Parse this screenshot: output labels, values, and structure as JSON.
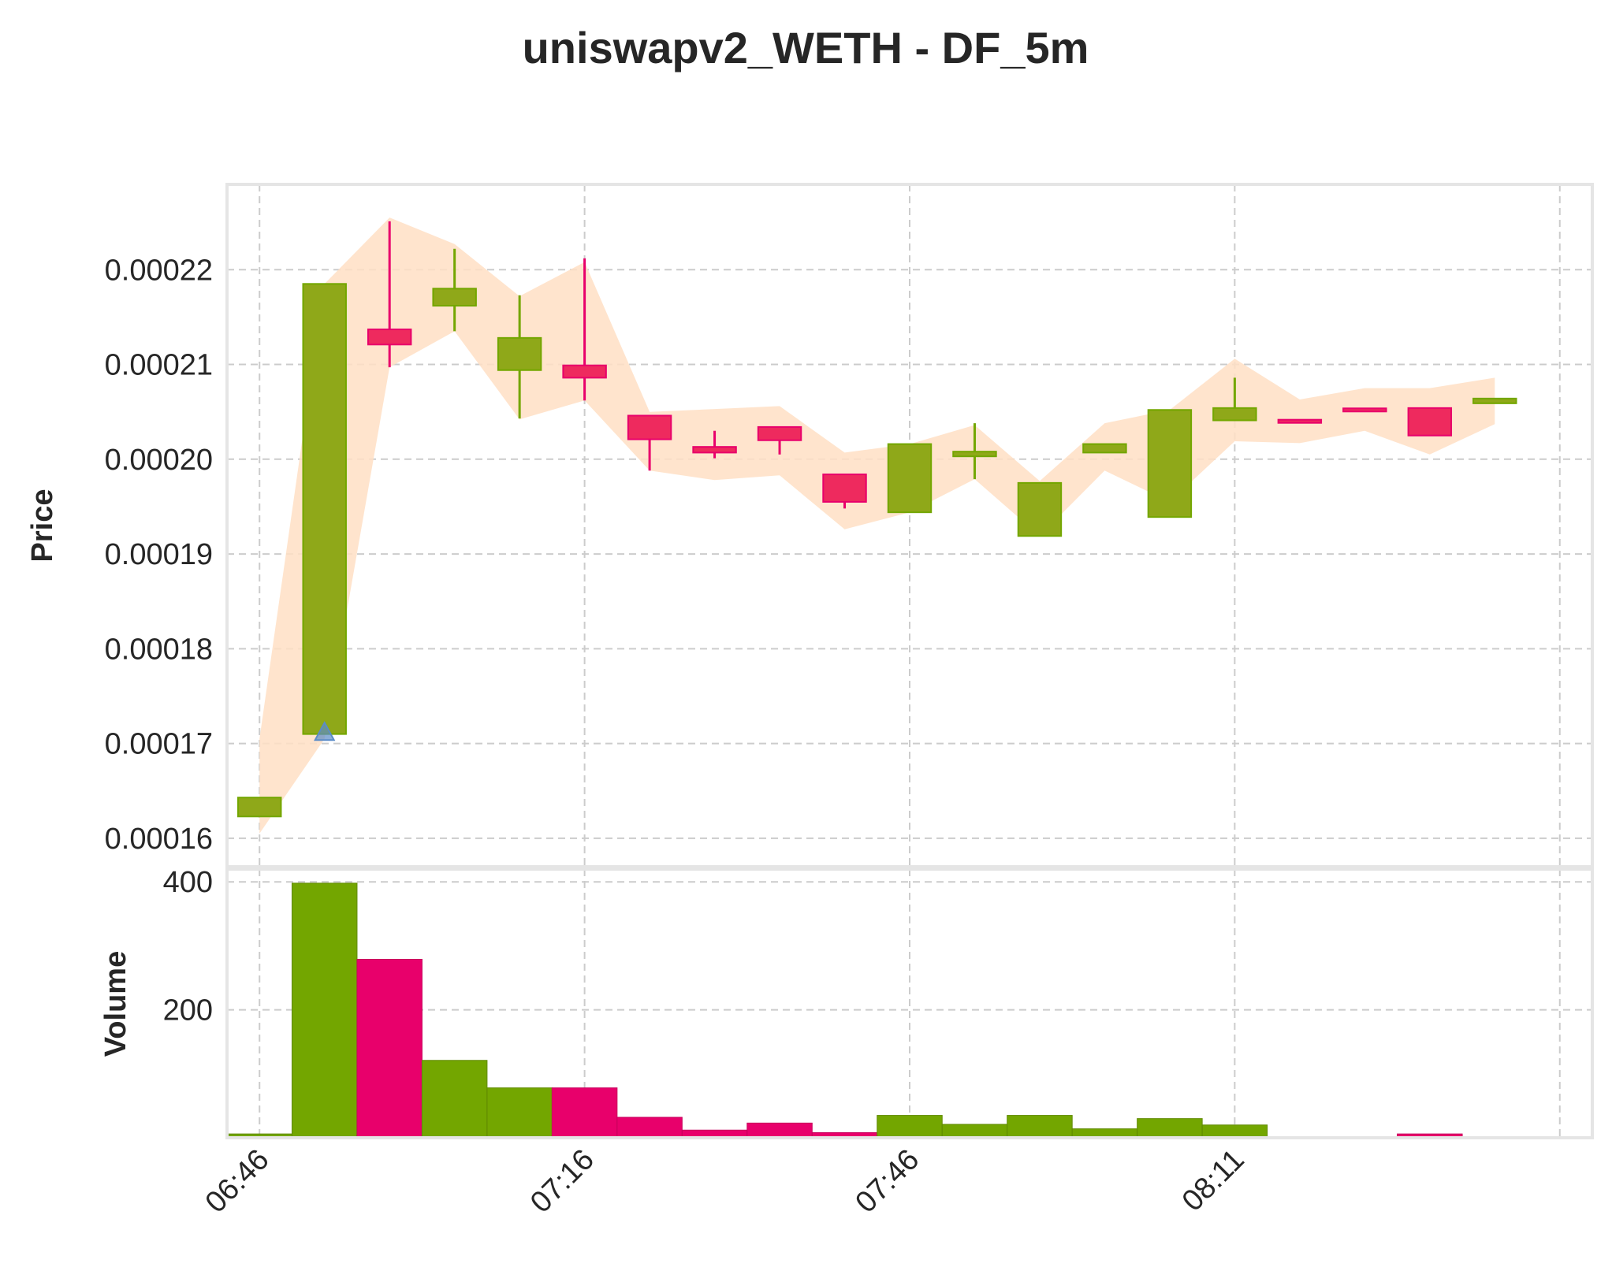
{
  "colors": {
    "up": "#73a600",
    "up_body": "#8fa819",
    "down": "#e8006b",
    "down_body": "#ee2a5e",
    "band": "#ffdfc4",
    "marker": "#5b8cc8",
    "frame": "#e5e5e5",
    "grid": "#cccccc",
    "text": "#262626"
  },
  "chart_data": {
    "type": "candlestick",
    "title": "uniswapv2_WETH - DF_5m",
    "price_axis": {
      "label": "Price",
      "ylim": [
        0.000157,
        0.000229
      ],
      "ticks": [
        0.00016,
        0.00017,
        0.00018,
        0.00019,
        0.0002,
        0.00021,
        0.00022
      ],
      "tick_labels": [
        "0.00016",
        "0.00017",
        "0.00018",
        "0.00019",
        "0.00020",
        "0.00021",
        "0.00022"
      ]
    },
    "volume_axis": {
      "label": "Volume",
      "ylim": [
        0,
        420
      ],
      "ticks": [
        200,
        400
      ],
      "tick_labels": [
        "200",
        "400"
      ]
    },
    "x_axis": {
      "xlim": [
        -0.5,
        20.5
      ],
      "tick_positions": [
        0,
        5,
        10,
        15,
        20
      ],
      "tick_labels": [
        "06:46",
        "07:16",
        "07:46",
        "08:11",
        ""
      ]
    },
    "grid": true,
    "candles": [
      {
        "x": 0,
        "open": 0.0001623,
        "high": 0.0001643,
        "low": 0.0001623,
        "close": 0.0001643,
        "volume": 6,
        "dir": "up"
      },
      {
        "x": 1,
        "open": 0.000171,
        "high": 0.0002185,
        "low": 0.000171,
        "close": 0.0002185,
        "volume": 398,
        "dir": "up"
      },
      {
        "x": 2,
        "open": 0.0002137,
        "high": 0.0002251,
        "low": 0.0002097,
        "close": 0.0002121,
        "volume": 279,
        "dir": "down"
      },
      {
        "x": 3,
        "open": 0.0002162,
        "high": 0.0002222,
        "low": 0.0002135,
        "close": 0.000218,
        "volume": 121,
        "dir": "up"
      },
      {
        "x": 4,
        "open": 0.0002094,
        "high": 0.0002173,
        "low": 0.0002043,
        "close": 0.0002128,
        "volume": 78,
        "dir": "up"
      },
      {
        "x": 5,
        "open": 0.0002099,
        "high": 0.0002212,
        "low": 0.0002062,
        "close": 0.0002086,
        "volume": 78,
        "dir": "down"
      },
      {
        "x": 6,
        "open": 0.0002046,
        "high": 0.0002046,
        "low": 0.0001988,
        "close": 0.0002021,
        "volume": 32,
        "dir": "down"
      },
      {
        "x": 7,
        "open": 0.0002013,
        "high": 0.000203,
        "low": 0.0002001,
        "close": 0.0002007,
        "volume": 12,
        "dir": "down"
      },
      {
        "x": 8,
        "open": 0.0002034,
        "high": 0.0002034,
        "low": 0.0002005,
        "close": 0.000202,
        "volume": 23,
        "dir": "down"
      },
      {
        "x": 9,
        "open": 0.0001984,
        "high": 0.0001984,
        "low": 0.0001948,
        "close": 0.0001955,
        "volume": 8,
        "dir": "down"
      },
      {
        "x": 10,
        "open": 0.0001944,
        "high": 0.0002016,
        "low": 0.0001944,
        "close": 0.0002016,
        "volume": 35,
        "dir": "up"
      },
      {
        "x": 11,
        "open": 0.0002003,
        "high": 0.0002038,
        "low": 0.0001979,
        "close": 0.0002008,
        "volume": 21,
        "dir": "up"
      },
      {
        "x": 12,
        "open": 0.0001919,
        "high": 0.0001975,
        "low": 0.0001919,
        "close": 0.0001975,
        "volume": 35,
        "dir": "up"
      },
      {
        "x": 13,
        "open": 0.0002007,
        "high": 0.0002016,
        "low": 0.0002007,
        "close": 0.0002016,
        "volume": 14,
        "dir": "up"
      },
      {
        "x": 14,
        "open": 0.0001939,
        "high": 0.0002052,
        "low": 0.0001939,
        "close": 0.0002052,
        "volume": 30,
        "dir": "up"
      },
      {
        "x": 15,
        "open": 0.0002041,
        "high": 0.0002086,
        "low": 0.0002041,
        "close": 0.0002054,
        "volume": 20,
        "dir": "up"
      },
      {
        "x": 16,
        "open": 0.000204,
        "high": 0.000204,
        "low": 0.000204,
        "close": 0.000204,
        "volume": 0,
        "dir": "down"
      },
      {
        "x": 17,
        "open": 0.0002052,
        "high": 0.0002052,
        "low": 0.0002052,
        "close": 0.0002052,
        "volume": 0,
        "dir": "down"
      },
      {
        "x": 18,
        "open": 0.0002054,
        "high": 0.0002054,
        "low": 0.0002025,
        "close": 0.0002025,
        "volume": 6,
        "dir": "down"
      },
      {
        "x": 19,
        "open": 0.0002059,
        "high": 0.0002064,
        "low": 0.0002059,
        "close": 0.0002064,
        "volume": 0,
        "dir": "up"
      }
    ],
    "band": {
      "upper": [
        0.0001705,
        0.0002185,
        0.0002255,
        0.0002227,
        0.0002172,
        0.0002208,
        0.000205,
        0.0002053,
        0.0002056,
        0.0002007,
        0.0002016,
        0.0002036,
        0.0001977,
        0.0002038,
        0.0002052,
        0.0002106,
        0.0002063,
        0.0002075,
        0.0002075,
        0.0002086
      ],
      "lower": [
        0.0001605,
        0.0001705,
        0.0002097,
        0.0002135,
        0.0002042,
        0.0002062,
        0.0001988,
        0.0001978,
        0.0001983,
        0.0001926,
        0.0001944,
        0.0001979,
        0.0001919,
        0.0001988,
        0.0001955,
        0.0002019,
        0.0002017,
        0.000203,
        0.0002005,
        0.0002037
      ]
    },
    "markers": [
      {
        "x": 1,
        "y": 0.0001712,
        "shape": "triangle-up"
      }
    ]
  }
}
